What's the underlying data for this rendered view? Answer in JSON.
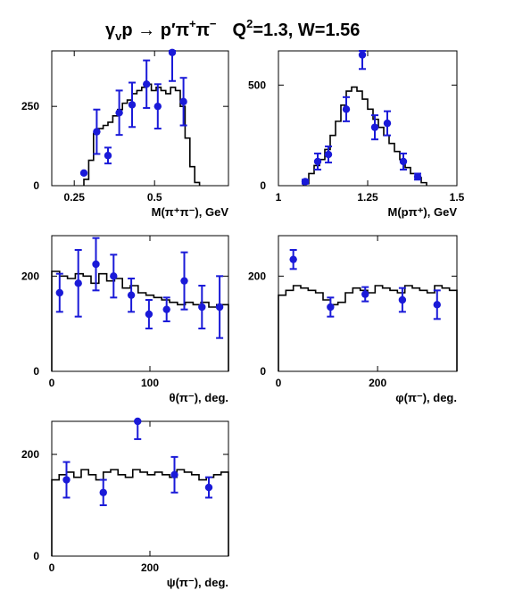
{
  "title": {
    "prefix": "γ",
    "prefix_sub": "v",
    "reaction": "p → p′π",
    "pi_plus": "+",
    "pi": "π",
    "pi_minus": "−",
    "q": "Q",
    "q_sup": "2",
    "rest": "=1.3, W=1.56"
  },
  "colors": {
    "data_points": "#1a1ad8",
    "histogram": "#000000"
  },
  "chart_data": [
    {
      "id": "m_pipi",
      "type": "histogram+points",
      "xlabel": "M(π⁺π⁻), GeV",
      "xlim": [
        0.18,
        0.73
      ],
      "ylim": [
        0,
        425
      ],
      "xticks": [
        0.25,
        0.5
      ],
      "xtick_labels": [
        "0.25",
        "0.5"
      ],
      "yticks": [
        0,
        250
      ],
      "ytick_labels": [
        "0",
        "250"
      ],
      "hist": {
        "edges": [
          0.28,
          0.295,
          0.31,
          0.325,
          0.34,
          0.355,
          0.37,
          0.385,
          0.4,
          0.415,
          0.43,
          0.445,
          0.46,
          0.475,
          0.49,
          0.505,
          0.52,
          0.535,
          0.55,
          0.565,
          0.58,
          0.595,
          0.61,
          0.625,
          0.64
        ],
        "values": [
          20,
          80,
          165,
          180,
          190,
          200,
          220,
          240,
          260,
          270,
          290,
          300,
          310,
          320,
          300,
          310,
          300,
          290,
          310,
          300,
          250,
          150,
          60,
          10
        ]
      },
      "points": [
        {
          "x": 0.28,
          "y": 40,
          "err": 0
        },
        {
          "x": 0.32,
          "y": 170,
          "err": 70
        },
        {
          "x": 0.355,
          "y": 95,
          "err": 25
        },
        {
          "x": 0.39,
          "y": 230,
          "err": 70
        },
        {
          "x": 0.43,
          "y": 255,
          "err": 70
        },
        {
          "x": 0.475,
          "y": 320,
          "err": 75
        },
        {
          "x": 0.51,
          "y": 250,
          "err": 70
        },
        {
          "x": 0.555,
          "y": 420,
          "err": 90
        },
        {
          "x": 0.59,
          "y": 265,
          "err": 75
        }
      ]
    },
    {
      "id": "m_ppi",
      "type": "histogram+points",
      "xlabel": "M(pπ⁺), GeV",
      "xlim": [
        1.0,
        1.5
      ],
      "ylim": [
        0,
        670
      ],
      "xticks": [
        1.0,
        1.25,
        1.5
      ],
      "xtick_labels": [
        "1",
        "1.25",
        "1.5"
      ],
      "yticks": [
        0,
        500
      ],
      "ytick_labels": [
        "0",
        "500"
      ],
      "hist": {
        "edges": [
          1.07,
          1.085,
          1.1,
          1.115,
          1.13,
          1.145,
          1.16,
          1.175,
          1.19,
          1.205,
          1.22,
          1.235,
          1.25,
          1.265,
          1.28,
          1.295,
          1.31,
          1.325,
          1.34,
          1.355,
          1.37,
          1.385,
          1.4,
          1.415
        ],
        "values": [
          10,
          60,
          100,
          130,
          180,
          250,
          320,
          400,
          470,
          490,
          470,
          430,
          380,
          330,
          290,
          250,
          210,
          170,
          130,
          90,
          60,
          40,
          15
        ]
      },
      "points": [
        {
          "x": 1.075,
          "y": 20,
          "err": 10
        },
        {
          "x": 1.11,
          "y": 120,
          "err": 40
        },
        {
          "x": 1.14,
          "y": 155,
          "err": 40
        },
        {
          "x": 1.19,
          "y": 380,
          "err": 60
        },
        {
          "x": 1.235,
          "y": 650,
          "err": 70
        },
        {
          "x": 1.27,
          "y": 290,
          "err": 60
        },
        {
          "x": 1.305,
          "y": 310,
          "err": 60
        },
        {
          "x": 1.35,
          "y": 120,
          "err": 40
        },
        {
          "x": 1.39,
          "y": 45,
          "err": 15
        }
      ]
    },
    {
      "id": "theta",
      "type": "histogram+points",
      "xlabel": "θ(π⁻), deg.",
      "xlim": [
        0,
        180
      ],
      "ylim": [
        0,
        285
      ],
      "xticks": [
        0,
        100
      ],
      "xtick_labels": [
        "0",
        "100"
      ],
      "yticks": [
        0,
        200
      ],
      "ytick_labels": [
        "0",
        "200"
      ],
      "hist": {
        "edges": [
          0,
          8,
          16,
          24,
          32,
          40,
          48,
          56,
          64,
          72,
          80,
          88,
          96,
          104,
          112,
          120,
          128,
          136,
          144,
          152,
          160,
          168,
          180
        ],
        "values": [
          210,
          200,
          195,
          205,
          200,
          185,
          205,
          190,
          195,
          175,
          180,
          165,
          160,
          155,
          150,
          145,
          140,
          145,
          140,
          145,
          135,
          140
        ]
      },
      "points": [
        {
          "x": 8,
          "y": 165,
          "err": 40
        },
        {
          "x": 27,
          "y": 185,
          "err": 70
        },
        {
          "x": 45,
          "y": 225,
          "err": 55
        },
        {
          "x": 63,
          "y": 200,
          "err": 45
        },
        {
          "x": 81,
          "y": 160,
          "err": 35
        },
        {
          "x": 99,
          "y": 120,
          "err": 30
        },
        {
          "x": 117,
          "y": 130,
          "err": 25
        },
        {
          "x": 135,
          "y": 190,
          "err": 60
        },
        {
          "x": 153,
          "y": 135,
          "err": 45
        },
        {
          "x": 171,
          "y": 135,
          "err": 65
        }
      ]
    },
    {
      "id": "phi",
      "type": "histogram+points",
      "xlabel": "φ(π⁻), deg.",
      "xlim": [
        0,
        360
      ],
      "ylim": [
        0,
        285
      ],
      "xticks": [
        0,
        200
      ],
      "xtick_labels": [
        "0",
        "200"
      ],
      "yticks": [
        0,
        200
      ],
      "ytick_labels": [
        "0",
        "200"
      ],
      "hist": {
        "edges": [
          0,
          15,
          30,
          45,
          60,
          75,
          90,
          105,
          120,
          135,
          150,
          165,
          180,
          195,
          210,
          225,
          240,
          255,
          270,
          285,
          300,
          315,
          330,
          345,
          360
        ],
        "values": [
          160,
          170,
          180,
          175,
          170,
          165,
          150,
          140,
          145,
          165,
          175,
          170,
          165,
          180,
          175,
          170,
          165,
          180,
          175,
          170,
          165,
          180,
          175,
          170
        ]
      },
      "points": [
        {
          "x": 30,
          "y": 235,
          "err": 20
        },
        {
          "x": 105,
          "y": 135,
          "err": 20
        },
        {
          "x": 175,
          "y": 162,
          "err": 15
        },
        {
          "x": 250,
          "y": 150,
          "err": 25
        },
        {
          "x": 320,
          "y": 140,
          "err": 30
        }
      ]
    },
    {
      "id": "psi",
      "type": "histogram+points",
      "xlabel": "ψ(π⁻), deg.",
      "xlim": [
        0,
        360
      ],
      "ylim": [
        0,
        265
      ],
      "xticks": [
        0,
        200
      ],
      "xtick_labels": [
        "0",
        "200"
      ],
      "yticks": [
        0,
        200
      ],
      "ytick_labels": [
        "0",
        "200"
      ],
      "hist": {
        "edges": [
          0,
          15,
          30,
          45,
          60,
          75,
          90,
          105,
          120,
          135,
          150,
          165,
          180,
          195,
          210,
          225,
          240,
          255,
          270,
          285,
          300,
          315,
          330,
          345,
          360
        ],
        "values": [
          150,
          160,
          165,
          155,
          170,
          160,
          150,
          165,
          170,
          160,
          155,
          170,
          165,
          160,
          165,
          160,
          155,
          170,
          165,
          160,
          150,
          155,
          160,
          165
        ]
      },
      "points": [
        {
          "x": 30,
          "y": 150,
          "err": 35
        },
        {
          "x": 105,
          "y": 125,
          "err": 25
        },
        {
          "x": 175,
          "y": 265,
          "err": 35
        },
        {
          "x": 250,
          "y": 160,
          "err": 35
        },
        {
          "x": 320,
          "y": 135,
          "err": 20
        }
      ]
    }
  ]
}
